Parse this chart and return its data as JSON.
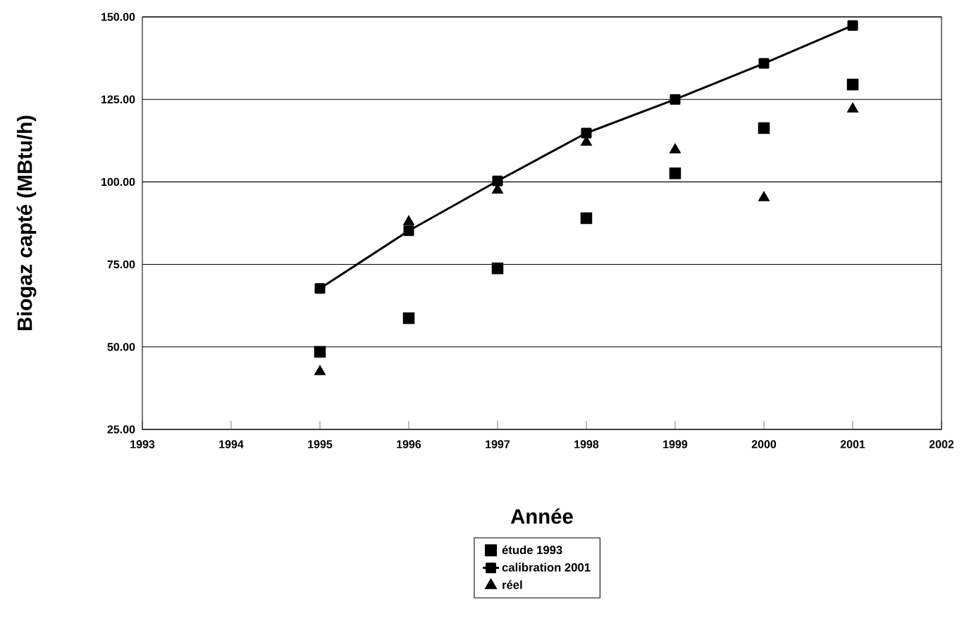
{
  "chart_data": {
    "type": "scatter",
    "xlabel": "Année",
    "ylabel": "Biogaz capté (MBtu/h)",
    "x": [
      1995,
      1996,
      1997,
      1998,
      1999,
      2000,
      2001
    ],
    "series": [
      {
        "name": "étude 1993",
        "marker": "square",
        "color": "#000000",
        "values": [
          48.5,
          58.7,
          73.8,
          89.0,
          102.6,
          116.3,
          129.5
        ]
      },
      {
        "name": "calibration 2001",
        "type": "line",
        "marker": "square",
        "color": "#000000",
        "values": [
          67.7,
          85.2,
          100.3,
          114.8,
          125.0,
          135.9,
          147.4
        ]
      },
      {
        "name": "réel",
        "marker": "triangle",
        "color": "#000000",
        "values": [
          42.5,
          87.9,
          97.5,
          112.0,
          109.7,
          95.2,
          122.1
        ]
      }
    ],
    "xlim": [
      1993,
      2002
    ],
    "ylim": [
      25,
      150
    ],
    "xticks": [
      1993,
      1994,
      1995,
      1996,
      1997,
      1998,
      1999,
      2000,
      2001,
      2002
    ],
    "yticks": [
      {
        "value": 25,
        "label": "25.00"
      },
      {
        "value": 50,
        "label": "50.00"
      },
      {
        "value": 75,
        "label": "75.00"
      },
      {
        "value": 100,
        "label": "100.00"
      },
      {
        "value": 125,
        "label": "125.00"
      },
      {
        "value": 150,
        "label": "150.00"
      }
    ],
    "grid": "y",
    "legend": "bottom"
  }
}
